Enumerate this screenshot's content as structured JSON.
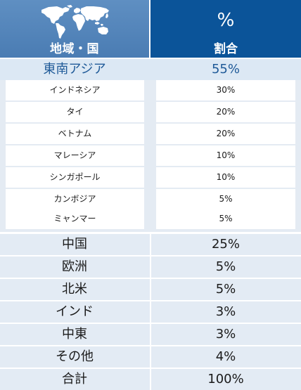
{
  "header": {
    "region_label": "地域・国",
    "percent_symbol": "%",
    "share_label": "割合",
    "map_icon": "world-map-icon"
  },
  "region": {
    "name": "東南アジア",
    "value": "55%"
  },
  "sub_rows": [
    {
      "name": "インドネシア",
      "value": "30%"
    },
    {
      "name": "タイ",
      "value": "20%"
    },
    {
      "name": "ベトナム",
      "value": "20%"
    },
    {
      "name": "マレーシア",
      "value": "10%"
    },
    {
      "name": "シンガポール",
      "value": "10%"
    },
    {
      "name": "カンボジア",
      "value": "5%"
    },
    {
      "name": "ミャンマー",
      "value": "5%"
    }
  ],
  "rows": [
    {
      "name": "中国",
      "value": "25%"
    },
    {
      "name": "欧洲",
      "value": "5%"
    },
    {
      "name": "北米",
      "value": "5%"
    },
    {
      "name": "インド",
      "value": "3%"
    },
    {
      "name": "中東",
      "value": "3%"
    },
    {
      "name": "その他",
      "value": "4%"
    },
    {
      "name": "合計",
      "value": "100%"
    }
  ],
  "colors": {
    "header_left": "#4a7cb3",
    "header_right": "#0b5499",
    "region_bg": "#dce8f4",
    "region_text": "#1f5a98",
    "row_bg": "#e3ebf4"
  }
}
